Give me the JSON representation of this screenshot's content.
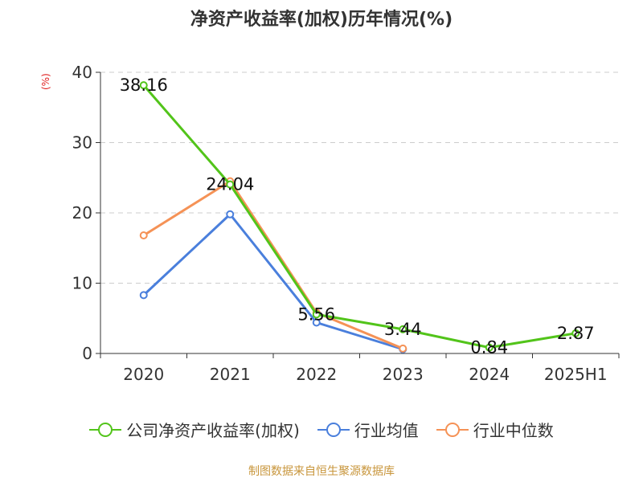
{
  "title": "净资产收益率(加权)历年情况(%)",
  "source": "制图数据来自恒生聚源数据库",
  "colors": {
    "title": "#333333",
    "unit": "#e02020",
    "source": "#c8963c",
    "axis": "#333333",
    "grid": "#cccccc"
  },
  "chart_data": {
    "type": "line",
    "categories": [
      "2020",
      "2021",
      "2022",
      "2023",
      "2024",
      "2025H1"
    ],
    "ylabel": "(%)",
    "ylim": [
      0,
      40
    ],
    "yticks": [
      "0",
      "10",
      "20",
      "30",
      "40"
    ],
    "grid": true,
    "legend_position": "bottom",
    "series": [
      {
        "name": "公司净资产收益率(加权)",
        "color": "#52c41a",
        "values": [
          38.16,
          24.04,
          5.56,
          3.44,
          0.84,
          2.87
        ],
        "labels": [
          "38.16",
          "24.04",
          "5.56",
          "3.44",
          "0.84",
          "2.87"
        ]
      },
      {
        "name": "行业均值",
        "color": "#4a7fdc",
        "values": [
          8.3,
          19.8,
          4.4,
          0.6,
          null,
          null
        ]
      },
      {
        "name": "行业中位数",
        "color": "#f59256",
        "values": [
          16.8,
          24.5,
          5.8,
          0.7,
          null,
          null
        ]
      }
    ]
  }
}
